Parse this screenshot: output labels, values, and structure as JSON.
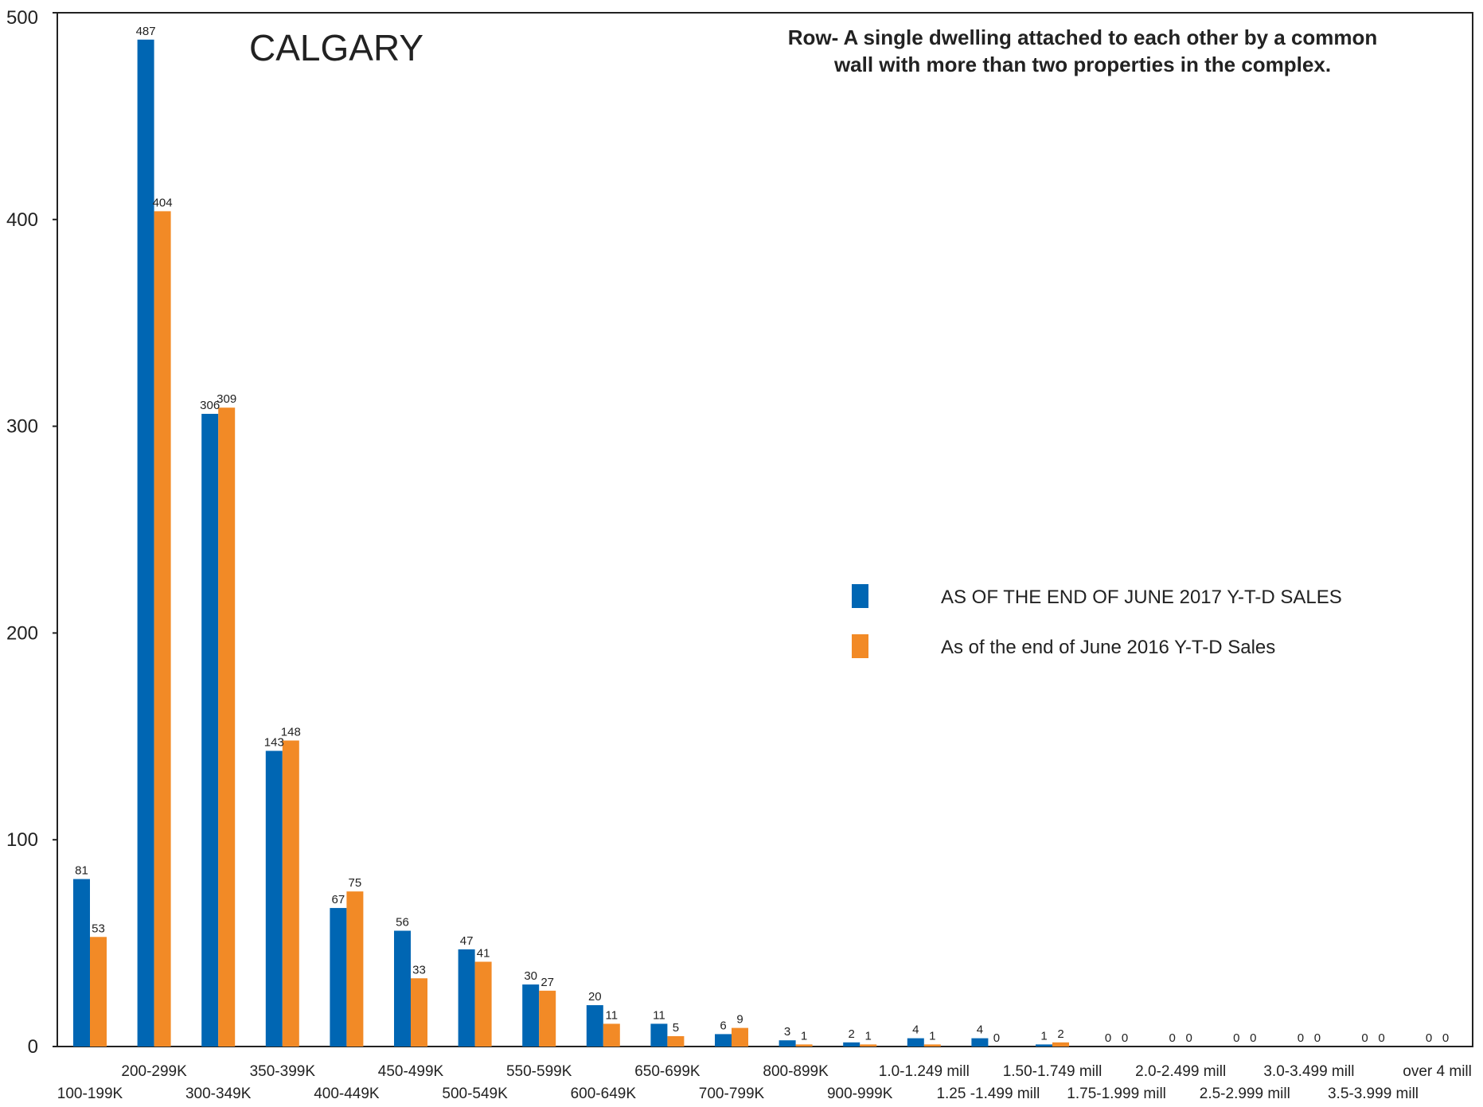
{
  "chart_data": {
    "type": "bar",
    "title": "CALGARY",
    "annotation_lines": [
      "Row- A single dwelling attached to each other by a common",
      "wall with more than two properties in the complex."
    ],
    "categories": [
      "100-199K",
      "200-299K",
      "300-349K",
      "350-399K",
      "400-449K",
      "450-499K",
      "500-549K",
      "550-599K",
      "600-649K",
      "650-699K",
      "700-799K",
      "800-899K",
      "900-999K",
      "1.0-1.249 mill",
      "1.25 -1.499 mill",
      "1.50-1.749 mill",
      "1.75-1.999 mill",
      "2.0-2.499 mill",
      "2.5-2.999 mill",
      "3.0-3.499 mill",
      "3.5-3.999 mill",
      "over 4 mill"
    ],
    "series": [
      {
        "name": "AS OF THE END OF JUNE 2017 Y-T-D SALES",
        "color": "#0066b3",
        "values": [
          81,
          487,
          306,
          143,
          67,
          56,
          47,
          30,
          20,
          11,
          6,
          3,
          2,
          4,
          4,
          1,
          0,
          0,
          0,
          0,
          0,
          0
        ]
      },
      {
        "name": "As of the end of June 2016 Y-T-D Sales",
        "color": "#f28a26",
        "values": [
          53,
          404,
          309,
          148,
          75,
          33,
          41,
          27,
          11,
          5,
          9,
          1,
          1,
          1,
          0,
          2,
          0,
          0,
          0,
          0,
          0,
          0
        ]
      }
    ],
    "yticks": [
      0,
      100,
      200,
      300,
      400,
      500
    ],
    "ylim": [
      0,
      500
    ],
    "grid": false,
    "legend_position": "center-right"
  }
}
